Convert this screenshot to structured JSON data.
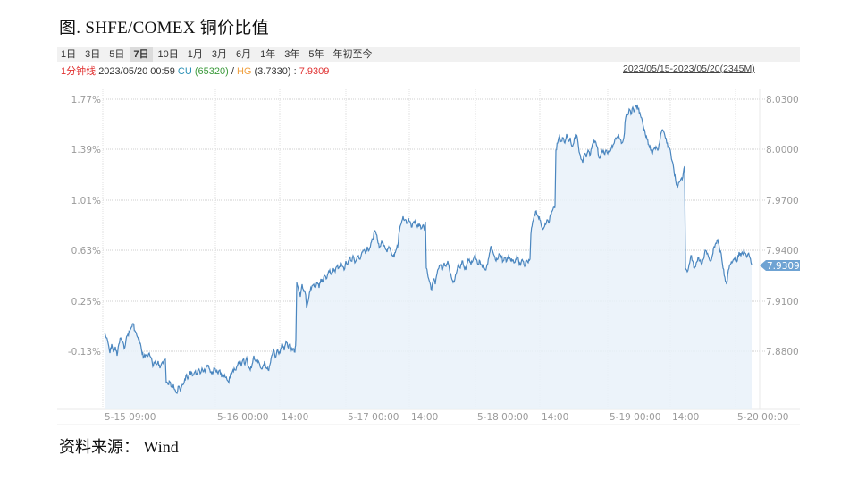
{
  "figure": {
    "title": "图. SHFE/COMEX 铜价比值",
    "source": "资料来源： Wind"
  },
  "toolbar": {
    "ranges": [
      "1日",
      "3日",
      "5日",
      "7日",
      "10日",
      "1月",
      "3月",
      "6月",
      "1年",
      "3年",
      "5年",
      "年初至今"
    ],
    "active_range": "7日"
  },
  "info": {
    "frequency": "1分钟线",
    "datetime": "2023/05/20 00:59",
    "cu_label": "CU",
    "cu_value": "(65320)",
    "separator": "/",
    "hg_label": "HG",
    "hg_value": "(3.7330)",
    "colon": ":",
    "ratio": "7.9309",
    "date_range": "2023/05/15-2023/05/20(2345M)"
  },
  "colors": {
    "line": "#4a86bf",
    "fill": "#e9f1f9",
    "grid": "#d8d8d8",
    "freq_red": "#e03030",
    "cu_blue": "#2a8fb5",
    "cu_green": "#3b9a3b",
    "hg_orange": "#f0a040",
    "price_tag": "#6fa3d3"
  },
  "chart_data": {
    "type": "line",
    "title": "SHFE/COMEX 铜价比值",
    "xlabel": "",
    "ylabel": "",
    "x_ticks": [
      "5-15 09:00",
      "5-16 00:00",
      "14:00",
      "5-17 00:00",
      "14:00",
      "5-18 00:00",
      "14:00",
      "5-19 00:00",
      "14:00",
      "5-20 00:00"
    ],
    "y_left_ticks": [
      "1.77%",
      "1.39%",
      "1.01%",
      "0.63%",
      "0.25%",
      "-0.13%"
    ],
    "y_right_ticks": [
      "8.0300",
      "8.0000",
      "7.9700",
      "7.9400",
      "7.9100",
      "7.8800"
    ],
    "ylim": [
      7.8575,
      8.035
    ],
    "last_value": "7.9309",
    "grid": true,
    "legend": null,
    "series": [
      {
        "name": "SHFE/COMEX 铜价比值",
        "x": [
          "5-15 09:00",
          "5-15 10:30",
          "5-15 12:00",
          "5-15 14:00",
          "5-15 16:00",
          "5-15 18:00",
          "5-15 20:00",
          "5-15 22:00",
          "5-16 00:00",
          "5-16 02:00",
          "5-16 09:00",
          "5-16 11:00",
          "5-16 13:30",
          "5-16 14:00",
          "5-16 16:00",
          "5-16 20:00",
          "5-16 22:00",
          "5-17 00:00",
          "5-17 02:00",
          "5-17 09:00",
          "5-17 11:00",
          "5-17 14:00",
          "5-17 20:00",
          "5-17 22:00",
          "5-18 00:00",
          "5-18 02:00",
          "5-18 09:00",
          "5-18 11:00",
          "5-18 14:00",
          "5-18 20:00",
          "5-18 22:00",
          "5-19 00:00",
          "5-19 02:00",
          "5-19 09:00",
          "5-19 11:00",
          "5-19 14:00",
          "5-19 16:00",
          "5-19 20:00",
          "5-19 22:00",
          "5-20 00:59"
        ],
        "values": [
          7.884,
          7.88,
          7.8865,
          7.8795,
          7.874,
          7.8685,
          7.87,
          7.872,
          7.8705,
          7.874,
          7.874,
          7.8775,
          7.881,
          7.916,
          7.922,
          7.927,
          7.931,
          7.936,
          7.933,
          7.944,
          7.941,
          7.917,
          7.919,
          7.923,
          7.923,
          7.926,
          7.924,
          7.938,
          7.952,
          8.002,
          8.002,
          8.0,
          8.003,
          8.001,
          8.009,
          8.005,
          7.981,
          7.928,
          7.932,
          7.9309
        ]
      }
    ]
  }
}
